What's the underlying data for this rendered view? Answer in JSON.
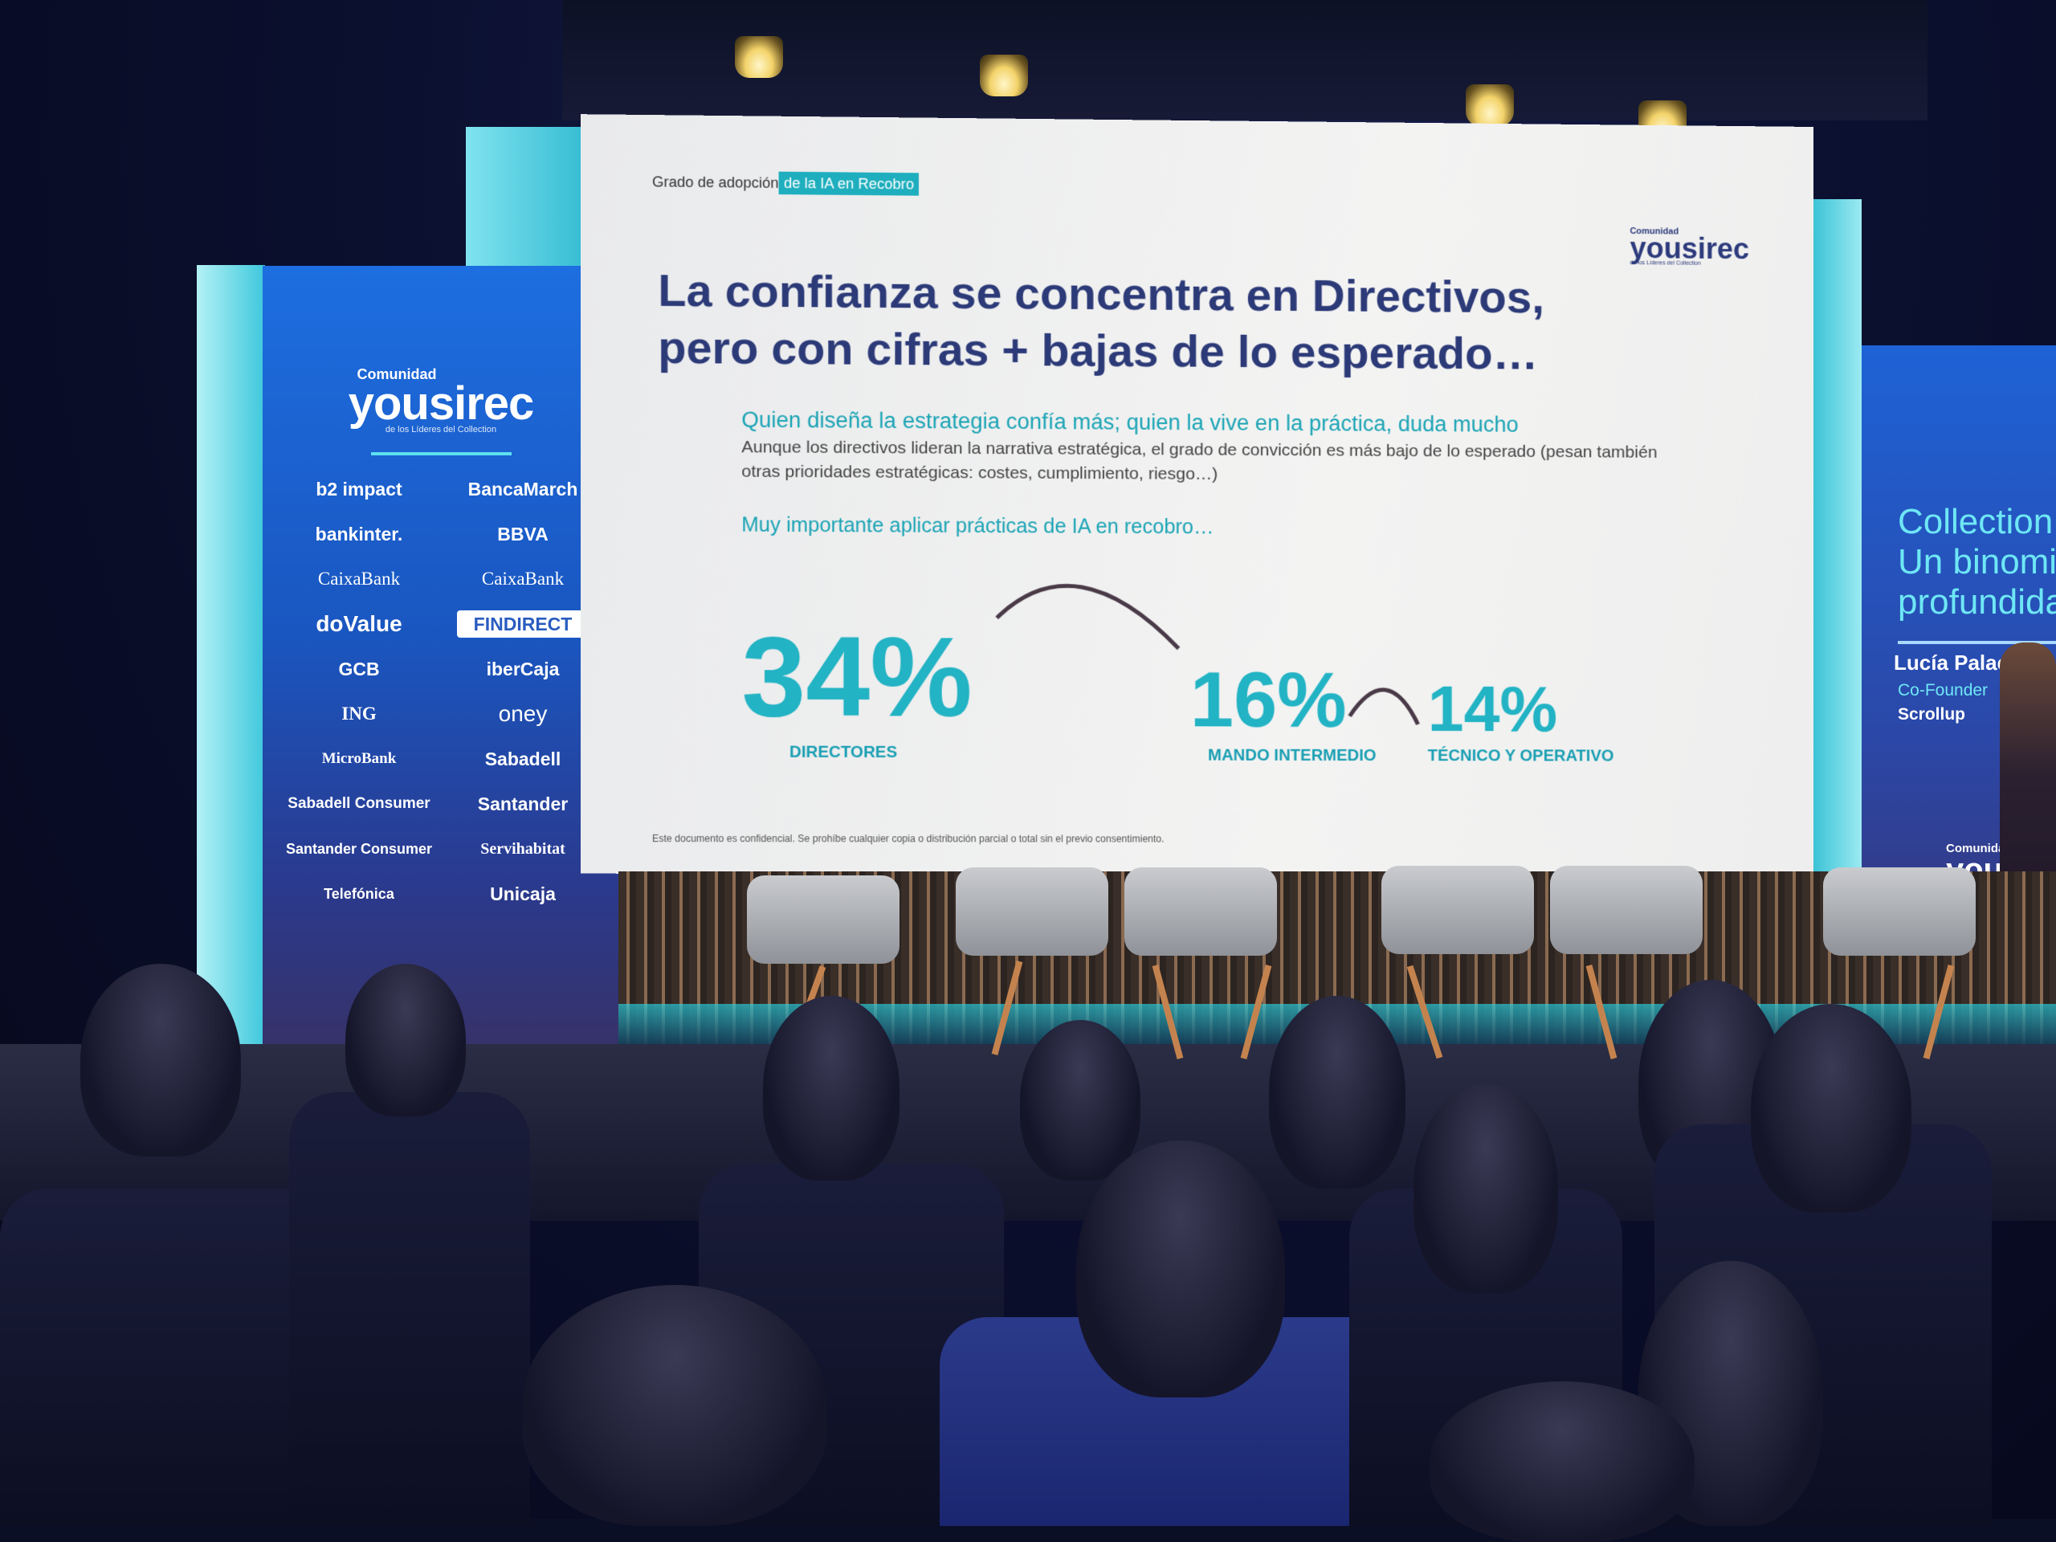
{
  "slide": {
    "kicker_plain": "Grado de adopción",
    "kicker_highlight": "de la IA en Recobro",
    "logo": {
      "top": "Comunidad",
      "main": "yousirec",
      "tag": "de los Líderes del Collection"
    },
    "title_line1": "La confianza se concentra en Directivos,",
    "title_line2": "pero con cifras + bajas de lo esperado…",
    "subtitle": "Quien diseña la estrategia confía más; quien la vive en la práctica, duda mucho",
    "body_line1": "Aunque los directivos lideran la narrativa estratégica, el grado de convicción es más bajo de lo esperado (pesan también",
    "body_line2": "otras prioridades estratégicas: costes, cumplimiento, riesgo…)",
    "important": "Muy importante aplicar prácticas de IA en recobro…",
    "stats": [
      {
        "value": "34%",
        "label": "DIRECTORES"
      },
      {
        "value": "16%",
        "label": "MANDO INTERMEDIO"
      },
      {
        "value": "14%",
        "label": "TÉCNICO Y OPERATIVO"
      }
    ],
    "footer": "Este documento es confidencial. Se prohíbe cualquier copia o distribución parcial o total sin el previo consentimiento.",
    "accent": "#22b3c4",
    "title_color": "#2c3a78"
  },
  "left_banner": {
    "logo": {
      "top": "Comunidad",
      "main": "yousirec",
      "tag": "de los Líderes del Collection"
    },
    "sponsors": [
      "b2 impact",
      "BancaMarch",
      "bankinter.",
      "BBVA",
      "CaixaBank",
      "CaixaBank",
      "doValue",
      "FINDIRECT",
      "GCB",
      "iberCaja",
      "ING",
      "oney",
      "MicroBank",
      "Sabadell",
      "Sabadell Consumer",
      "Santander",
      "Santander Consumer",
      "Servihabitat",
      "Telefónica",
      "Unicaja"
    ]
  },
  "right_banner": {
    "title_line1": "Collection",
    "title_line2": "Un binomi",
    "title_line3": "profundida",
    "speaker_name": "Lucía Palacios",
    "speaker_role": "Co-Founder",
    "speaker_company": "Scrollup",
    "logo_top": "Comunidad",
    "logo_main": "yous"
  }
}
